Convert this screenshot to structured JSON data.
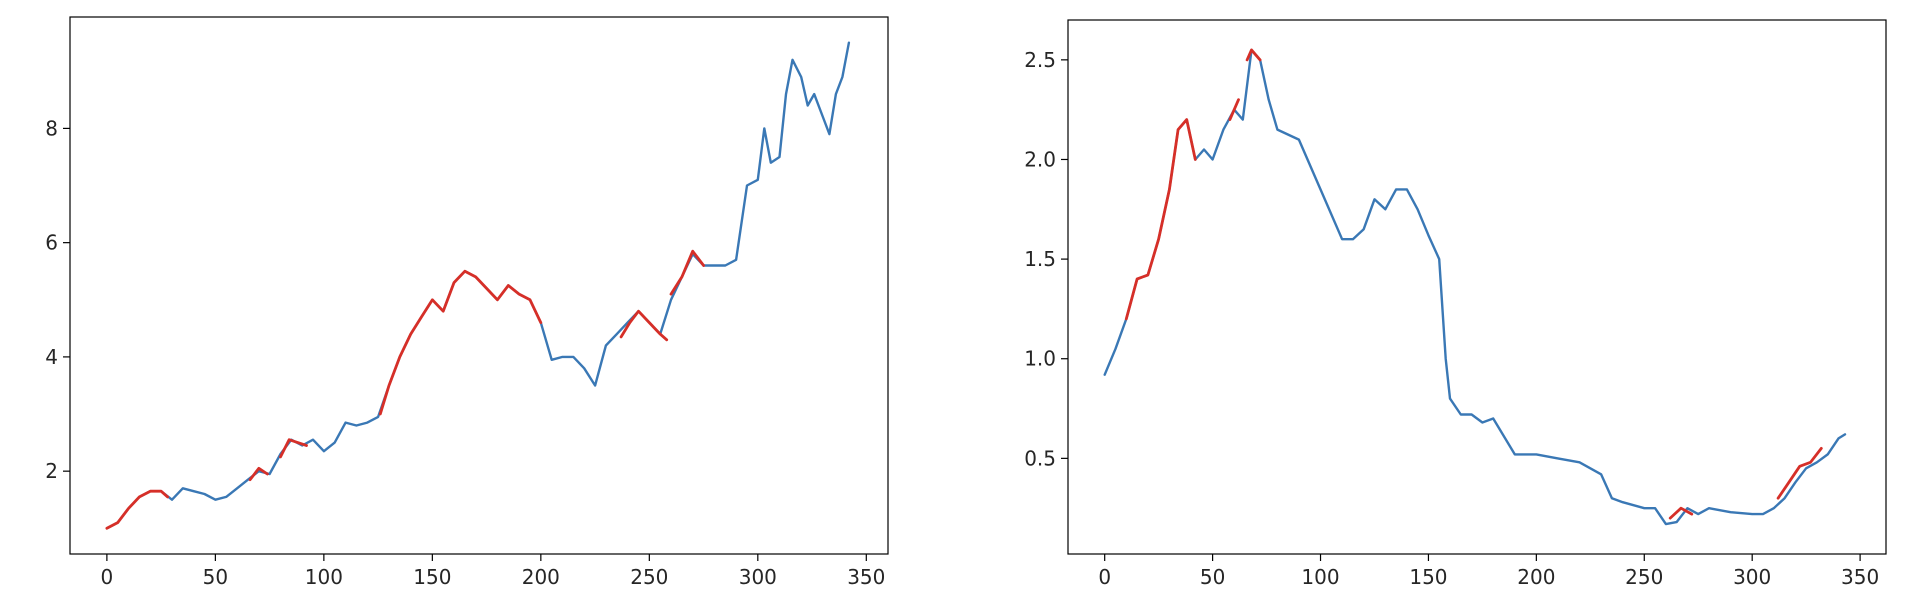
{
  "chart_data": [
    {
      "type": "line",
      "title": "",
      "xlabel": "",
      "ylabel": "",
      "xlim": [
        -17,
        360
      ],
      "ylim": [
        0.55,
        9.95
      ],
      "xticks": [
        0,
        50,
        100,
        150,
        200,
        250,
        300,
        350
      ],
      "yticks": [
        2,
        4,
        6,
        8
      ],
      "grid": false,
      "legend": "none",
      "colors": {
        "base": "#3a78b5",
        "highlight": "#d62f28"
      },
      "series": [
        {
          "color": "#3a78b5",
          "x": [
            0,
            5,
            10,
            15,
            20,
            25,
            30,
            35,
            40,
            45,
            50,
            55,
            60,
            65,
            70,
            75,
            80,
            85,
            90,
            95,
            100,
            105,
            110,
            115,
            120,
            125,
            130,
            135,
            140,
            145,
            150,
            155,
            160,
            165,
            170,
            175,
            180,
            185,
            190,
            195,
            200,
            205,
            210,
            215,
            220,
            225,
            230,
            235,
            240,
            245,
            250,
            255,
            260,
            265,
            270,
            275,
            280,
            285,
            290,
            295,
            300,
            303,
            306,
            310,
            313,
            316,
            320,
            323,
            326,
            330,
            333,
            336,
            339,
            342
          ],
          "y": [
            1.0,
            1.1,
            1.35,
            1.55,
            1.65,
            1.65,
            1.5,
            1.7,
            1.65,
            1.6,
            1.5,
            1.55,
            1.7,
            1.85,
            2.0,
            1.95,
            2.3,
            2.55,
            2.45,
            2.55,
            2.35,
            2.5,
            2.85,
            2.8,
            2.85,
            2.95,
            3.5,
            4.0,
            4.4,
            4.7,
            5.0,
            4.8,
            5.3,
            5.5,
            5.4,
            5.2,
            5.0,
            5.25,
            5.1,
            5.0,
            4.6,
            3.95,
            4.0,
            4.0,
            3.8,
            3.5,
            4.2,
            4.4,
            4.6,
            4.8,
            4.6,
            4.4,
            5.0,
            5.4,
            5.8,
            5.6,
            5.6,
            5.6,
            5.7,
            7.0,
            7.1,
            8.0,
            7.4,
            7.5,
            8.6,
            9.2,
            8.9,
            8.4,
            8.6,
            8.2,
            7.9,
            8.6,
            8.9,
            9.5
          ]
        },
        {
          "color": "#d62f28",
          "x": [
            0,
            5,
            10,
            15,
            20,
            25,
            28
          ],
          "y": [
            1.0,
            1.1,
            1.35,
            1.55,
            1.65,
            1.65,
            1.55
          ]
        },
        {
          "color": "#d62f28",
          "x": [
            66,
            70,
            74
          ],
          "y": [
            1.85,
            2.05,
            1.95
          ]
        },
        {
          "color": "#d62f28",
          "x": [
            80,
            84,
            88,
            92
          ],
          "y": [
            2.25,
            2.55,
            2.5,
            2.45
          ]
        },
        {
          "color": "#d62f28",
          "x": [
            126,
            130,
            135,
            140,
            145,
            150,
            155,
            160,
            165,
            170,
            175,
            180,
            185,
            190,
            195,
            200
          ],
          "y": [
            3.0,
            3.5,
            4.0,
            4.4,
            4.7,
            5.0,
            4.8,
            5.3,
            5.5,
            5.4,
            5.2,
            5.0,
            5.25,
            5.1,
            5.0,
            4.6
          ]
        },
        {
          "color": "#d62f28",
          "x": [
            237,
            241,
            245,
            250,
            255,
            258
          ],
          "y": [
            4.35,
            4.6,
            4.8,
            4.6,
            4.4,
            4.3
          ]
        },
        {
          "color": "#d62f28",
          "x": [
            260,
            265,
            270,
            275
          ],
          "y": [
            5.1,
            5.4,
            5.85,
            5.6
          ]
        }
      ]
    },
    {
      "type": "line",
      "title": "",
      "xlabel": "",
      "ylabel": "",
      "xlim": [
        -17,
        362
      ],
      "ylim": [
        0.02,
        2.7
      ],
      "xticks": [
        0,
        50,
        100,
        150,
        200,
        250,
        300,
        350
      ],
      "yticks": [
        0.5,
        1.0,
        1.5,
        2.0,
        2.5
      ],
      "ytick_labels": [
        "0.5",
        "1.0",
        "1.5",
        "2.0",
        "2.5"
      ],
      "grid": false,
      "legend": "none",
      "colors": {
        "base": "#3a78b5",
        "highlight": "#d62f28"
      },
      "series": [
        {
          "color": "#3a78b5",
          "x": [
            0,
            5,
            10,
            15,
            20,
            25,
            30,
            34,
            38,
            42,
            46,
            50,
            55,
            60,
            64,
            68,
            72,
            76,
            80,
            90,
            100,
            110,
            115,
            120,
            125,
            130,
            135,
            140,
            145,
            150,
            155,
            158,
            160,
            165,
            170,
            175,
            180,
            190,
            200,
            210,
            220,
            230,
            235,
            240,
            250,
            255,
            260,
            265,
            270,
            275,
            280,
            290,
            300,
            305,
            310,
            315,
            320,
            325,
            330,
            335,
            340,
            343
          ],
          "y": [
            0.92,
            1.05,
            1.2,
            1.4,
            1.42,
            1.6,
            1.85,
            2.15,
            2.2,
            2.0,
            2.05,
            2.0,
            2.15,
            2.25,
            2.2,
            2.55,
            2.5,
            2.3,
            2.15,
            2.1,
            1.85,
            1.6,
            1.6,
            1.65,
            1.8,
            1.75,
            1.85,
            1.85,
            1.75,
            1.62,
            1.5,
            1.0,
            0.8,
            0.72,
            0.72,
            0.68,
            0.7,
            0.52,
            0.52,
            0.5,
            0.48,
            0.42,
            0.3,
            0.28,
            0.25,
            0.25,
            0.17,
            0.18,
            0.25,
            0.22,
            0.25,
            0.23,
            0.22,
            0.22,
            0.25,
            0.3,
            0.38,
            0.45,
            0.48,
            0.52,
            0.6,
            0.62
          ]
        },
        {
          "color": "#d62f28",
          "x": [
            10,
            15,
            20,
            25,
            30,
            34,
            38,
            42
          ],
          "y": [
            1.2,
            1.4,
            1.42,
            1.6,
            1.85,
            2.15,
            2.2,
            2.0
          ]
        },
        {
          "color": "#d62f28",
          "x": [
            58,
            62
          ],
          "y": [
            2.2,
            2.3
          ]
        },
        {
          "color": "#d62f28",
          "x": [
            66,
            68,
            72
          ],
          "y": [
            2.5,
            2.55,
            2.5
          ]
        },
        {
          "color": "#d62f28",
          "x": [
            262,
            267,
            272
          ],
          "y": [
            0.2,
            0.25,
            0.22
          ]
        },
        {
          "color": "#d62f28",
          "x": [
            312,
            317,
            322,
            327,
            332
          ],
          "y": [
            0.3,
            0.38,
            0.46,
            0.48,
            0.55
          ]
        }
      ]
    }
  ]
}
